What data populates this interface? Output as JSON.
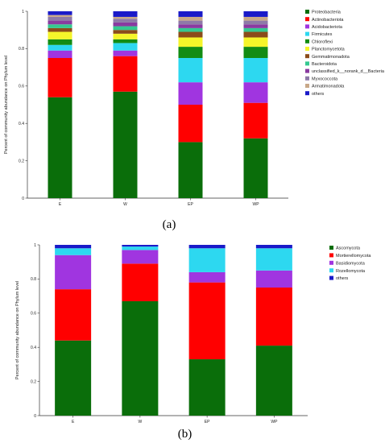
{
  "chart_data": [
    {
      "panel": "(a)",
      "type": "bar",
      "stacked": true,
      "ylabel": "Percent of community abundance on Phylum level",
      "ylim": [
        0,
        1
      ],
      "yticks": [
        "0",
        "0.2",
        "0.4",
        "0.6",
        "0.8",
        "1"
      ],
      "categories": [
        "E",
        "W",
        "EP",
        "WP"
      ],
      "legend_position": "right",
      "series": [
        {
          "name": "Proteobacteria",
          "color": "#0a6e0a",
          "values": [
            0.54,
            0.57,
            0.3,
            0.32
          ]
        },
        {
          "name": "Actinobacteriota",
          "color": "#ff0000",
          "values": [
            0.21,
            0.19,
            0.2,
            0.19
          ]
        },
        {
          "name": "Acidobacteriota",
          "color": "#a035e0",
          "values": [
            0.04,
            0.03,
            0.12,
            0.11
          ]
        },
        {
          "name": "Firmicutes",
          "color": "#2dd8f0",
          "values": [
            0.03,
            0.04,
            0.13,
            0.13
          ]
        },
        {
          "name": "Chloroflexi",
          "color": "#138c13",
          "values": [
            0.03,
            0.02,
            0.06,
            0.06
          ]
        },
        {
          "name": "Planctomycetota",
          "color": "#f5f52a",
          "values": [
            0.04,
            0.03,
            0.05,
            0.05
          ]
        },
        {
          "name": "Gemmatimonadota",
          "color": "#8b4c1a",
          "values": [
            0.02,
            0.02,
            0.03,
            0.03
          ]
        },
        {
          "name": "Bacteroidota",
          "color": "#35c890",
          "values": [
            0.02,
            0.02,
            0.02,
            0.02
          ]
        },
        {
          "name": "unclassified_k__norank_d__Bacteria",
          "color": "#8a3aa0",
          "values": [
            0.02,
            0.02,
            0.02,
            0.02
          ]
        },
        {
          "name": "Myxococcota",
          "color": "#8e7aa8",
          "values": [
            0.02,
            0.02,
            0.02,
            0.02
          ]
        },
        {
          "name": "Armatimonadota",
          "color": "#c8a888",
          "values": [
            0.01,
            0.01,
            0.02,
            0.02
          ]
        },
        {
          "name": "others",
          "color": "#1a1ac8",
          "values": [
            0.02,
            0.03,
            0.03,
            0.03
          ]
        }
      ]
    },
    {
      "panel": "(b)",
      "type": "bar",
      "stacked": true,
      "ylabel": "Percent of community abundance on Phylum level",
      "ylim": [
        0,
        1
      ],
      "yticks": [
        "0",
        "0.2",
        "0.4",
        "0.6",
        "0.8",
        "1"
      ],
      "categories": [
        "E",
        "W",
        "EP",
        "WP"
      ],
      "legend_position": "right",
      "series": [
        {
          "name": "Ascomycota",
          "color": "#0a6e0a",
          "values": [
            0.44,
            0.67,
            0.33,
            0.41
          ]
        },
        {
          "name": "Mortierellomycota",
          "color": "#ff0000",
          "values": [
            0.3,
            0.22,
            0.45,
            0.34
          ]
        },
        {
          "name": "Basidiomycota",
          "color": "#a035e0",
          "values": [
            0.2,
            0.08,
            0.06,
            0.1
          ]
        },
        {
          "name": "Rozellomycota",
          "color": "#2dd8f0",
          "values": [
            0.04,
            0.02,
            0.14,
            0.13
          ]
        },
        {
          "name": "others",
          "color": "#1a1ac8",
          "values": [
            0.02,
            0.01,
            0.02,
            0.02
          ]
        }
      ]
    }
  ]
}
